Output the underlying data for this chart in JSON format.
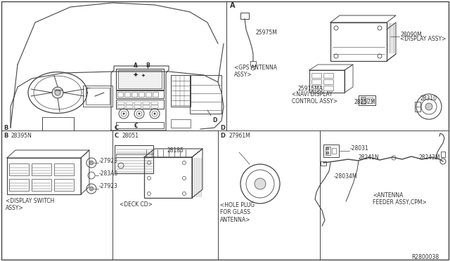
{
  "bg_color": "#ffffff",
  "line_color": "#444444",
  "text_color": "#333333",
  "figsize": [
    6.4,
    3.72
  ],
  "dpi": 100,
  "parts": {
    "gps_antenna": "25975M",
    "gps_antenna_label": "<GPS ANTENNA\nASSY>",
    "display_assy_num": "28090M",
    "display_assy_label": "<DISPLAY ASSY>",
    "navi_display_num": "25915MA",
    "navi_display_label": "<NAVI DISPLAY\nCONTROL ASSY>",
    "navi_display_num2": "28257M",
    "part_28310": "28310",
    "display_switch_num": "28395N",
    "display_switch_label": "<DISPLAY SWITCH\nASSY>",
    "knob1": "27923",
    "knob2": "27923",
    "bracket": "283A6",
    "deck_cd_num": "28051",
    "deck_cd_num2": "28185",
    "deck_cd_label": "<DECK CD>",
    "hole_plug_num": "27961M",
    "hole_plug_label": "<HOLE PLUG\nFOR GLASS\nANTENNA>",
    "antenna_feeder_28031": "28031",
    "antenna_feeder_28241": "28241N",
    "antenna_feeder_28034": "28034M",
    "antenna_feeder_28242": "28242M",
    "antenna_feeder_label": "<ANTENNA\nFEEDER ASSY,CPM>",
    "ref_num": "R2800038",
    "section_A": "A",
    "section_B": "B",
    "section_C": "C",
    "section_D": "D"
  }
}
